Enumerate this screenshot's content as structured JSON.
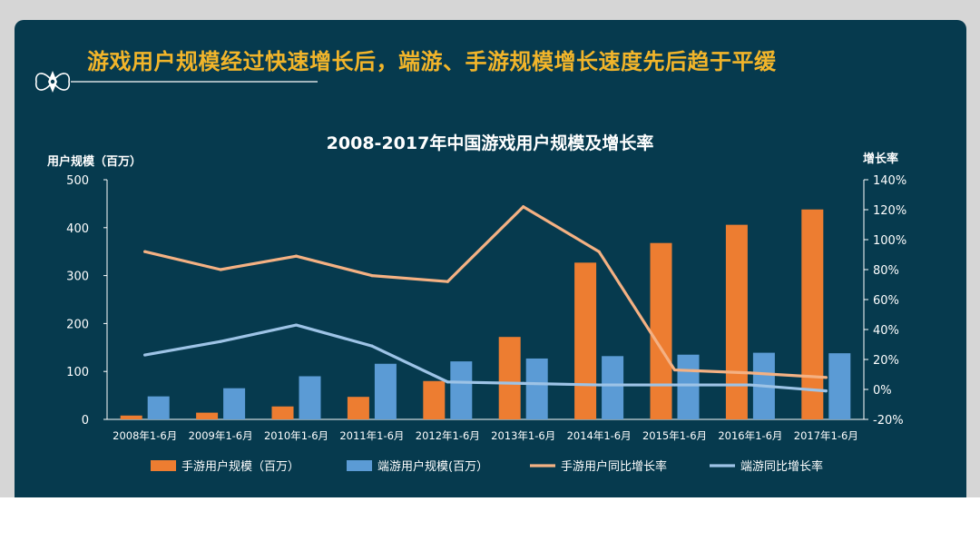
{
  "slide": {
    "title": "游戏用户规模经过快速增长后，端游、手游规模增长速度先后趋于平缓"
  },
  "colors": {
    "background": "#063a4e",
    "title": "#f2b52a",
    "mobile_bar": "#ed7d31",
    "pc_bar": "#5b9bd5",
    "mobile_growth_line": "#f4b183",
    "pc_growth_line": "#9dc3e6"
  },
  "chart_data": {
    "type": "bar",
    "title": "2008-2017年中国游戏用户规模及增长率",
    "ylabel": "用户规模（百万）",
    "y2label": "增长率",
    "ylim": [
      0,
      500
    ],
    "y2lim": [
      -20,
      140
    ],
    "yticks": [
      "500",
      "400",
      "300",
      "200",
      "100",
      "0"
    ],
    "y2ticks": [
      "140%",
      "120%",
      "100%",
      "80%",
      "60%",
      "40%",
      "20%",
      "0%",
      "-20%"
    ],
    "categories": [
      "2008年1-6月",
      "2009年1-6月",
      "2010年1-6月",
      "2011年1-6月",
      "2012年1-6月",
      "2013年1-6月",
      "2014年1-6月",
      "2015年1-6月",
      "2016年1-6月",
      "2017年1-6月"
    ],
    "series": [
      {
        "name": "手游用户规模（百万）",
        "kind": "bar",
        "axis": "left",
        "color": "#ed7d31",
        "values": [
          8,
          14,
          27,
          47,
          80,
          172,
          327,
          368,
          406,
          438
        ]
      },
      {
        "name": "端游用户规模(百万）",
        "kind": "bar",
        "axis": "left",
        "color": "#5b9bd5",
        "values": [
          48,
          65,
          90,
          116,
          121,
          127,
          132,
          135,
          139,
          138
        ]
      },
      {
        "name": "手游用户同比增长率",
        "kind": "line",
        "axis": "right",
        "color": "#f4b183",
        "values": [
          92,
          80,
          89,
          76,
          72,
          122,
          92,
          13,
          11,
          8
        ]
      },
      {
        "name": "端游同比增长率",
        "kind": "line",
        "axis": "right",
        "color": "#9dc3e6",
        "values": [
          23,
          32,
          43,
          29,
          5,
          4,
          3,
          3,
          3,
          -1
        ]
      }
    ]
  }
}
